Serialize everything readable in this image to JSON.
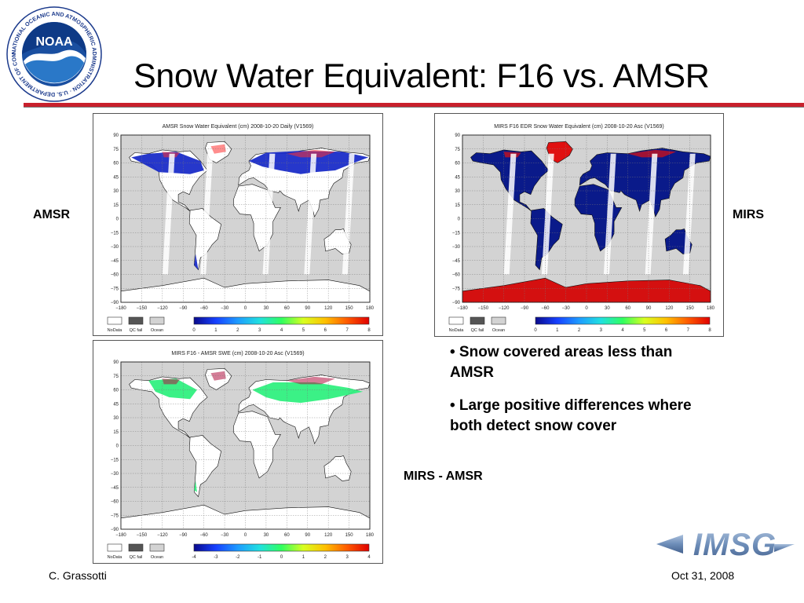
{
  "slide": {
    "title": "Snow Water Equivalent: F16 vs. AMSR",
    "logo_text": "NOAA",
    "logo_ring_text": "NATIONAL OCEANIC AND ATMOSPHERIC ADMINISTRATION · U.S. DEPARTMENT OF COMMERCE ·",
    "imsg_logo_text": "IMSG"
  },
  "labels": {
    "amsr": "AMSR",
    "mirs": "MIRS",
    "diff": "MIRS - AMSR"
  },
  "bullets": [
    "• Snow covered areas less than AMSR",
    "• Large positive differences where both detect snow cover"
  ],
  "footer": {
    "author": "C. Grassotti",
    "date": "Oct 31, 2008"
  },
  "maps": [
    {
      "title": "AMSR Snow Water Equivalent (cm) 2008-10-20 Daily (V1569)",
      "colorbar_ticks": [
        "0",
        "1",
        "2",
        "3",
        "4",
        "5",
        "6",
        "7",
        "8"
      ],
      "colorbar": [
        "#0a0a8c",
        "#1640ff",
        "#1e9bff",
        "#20e0e0",
        "#30ff60",
        "#d8ff20",
        "#ffc000",
        "#ff5a00",
        "#e00000"
      ],
      "land_fill": "#ffffff",
      "snow_color": "#1a2cc8",
      "snow_accent": "#ff3030",
      "antarctic_fill": "#ffffff"
    },
    {
      "title": "MIRS F16 EDR Snow Water Equivalent (cm) 2008-10-20 Asc (V1569)",
      "colorbar_ticks": [
        "0",
        "1",
        "2",
        "3",
        "4",
        "5",
        "6",
        "7",
        "8"
      ],
      "colorbar": [
        "#0a0a8c",
        "#1640ff",
        "#1e9bff",
        "#20e0e0",
        "#30ff60",
        "#d8ff20",
        "#ffc000",
        "#ff5a00",
        "#e00000"
      ],
      "land_fill": "#0a1a8a",
      "snow_color": "#0a1a8a",
      "snow_accent": "#e01010",
      "antarctic_fill": "#d41010"
    },
    {
      "title": "MIRS F16 - AMSR SWE (cm) 2008-10-20 Asc (V1569)",
      "colorbar_ticks": [
        "-4",
        "-3",
        "-2",
        "-1",
        "0",
        "1",
        "2",
        "3",
        "4"
      ],
      "colorbar": [
        "#0a0a8c",
        "#1640ff",
        "#1e9bff",
        "#20e0e0",
        "#30ff60",
        "#d8ff20",
        "#ffc000",
        "#ff5a00",
        "#e00000"
      ],
      "land_fill": "#ffffff",
      "snow_color": "#30f080",
      "snow_accent": "#b01040",
      "antarctic_fill": "#ffffff"
    }
  ],
  "map_axes": {
    "lat_ticks": [
      "90",
      "75",
      "60",
      "45",
      "30",
      "15",
      "0",
      "−15",
      "−30",
      "−45",
      "−60",
      "−75",
      "−90"
    ],
    "lon_ticks": [
      "−180",
      "−150",
      "−120",
      "−90",
      "−60",
      "−30",
      "0",
      "30",
      "60",
      "90",
      "120",
      "150",
      "180"
    ],
    "ocean_color": "#d3d3d3",
    "legend_boxes": [
      {
        "label": "NoData",
        "color": "#ffffff"
      },
      {
        "label": "QC fail",
        "color": "#555555"
      },
      {
        "label": "Ocean",
        "color": "#d3d3d3"
      }
    ]
  }
}
